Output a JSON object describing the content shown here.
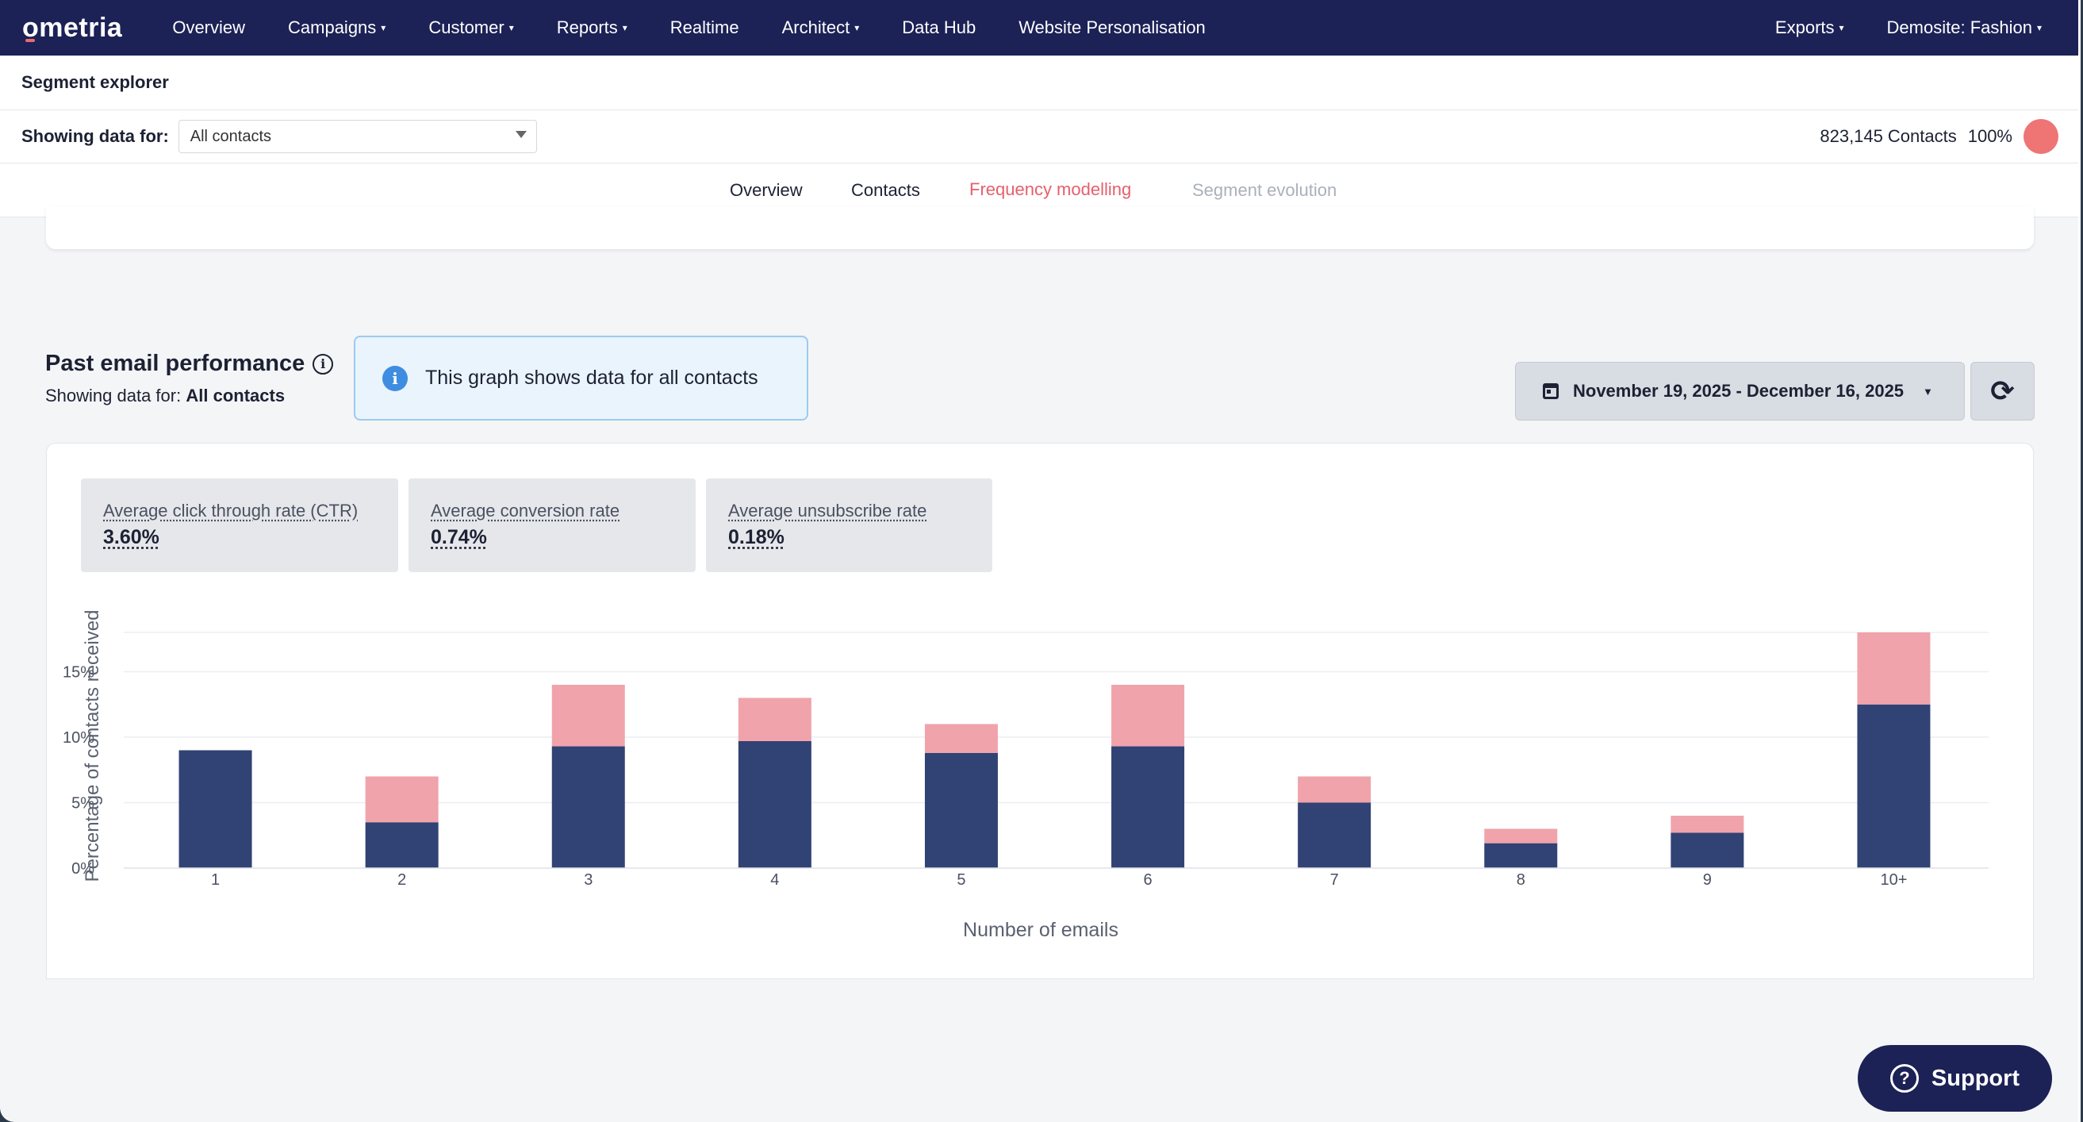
{
  "nav": {
    "logo": "ometria",
    "items": [
      {
        "label": "Overview",
        "dropdown": false
      },
      {
        "label": "Campaigns",
        "dropdown": true
      },
      {
        "label": "Customer",
        "dropdown": true
      },
      {
        "label": "Reports",
        "dropdown": true
      },
      {
        "label": "Realtime",
        "dropdown": false
      },
      {
        "label": "Architect",
        "dropdown": true
      },
      {
        "label": "Data Hub",
        "dropdown": false
      },
      {
        "label": "Website Personalisation",
        "dropdown": false
      }
    ],
    "right_items": [
      {
        "label": "Exports",
        "dropdown": true
      },
      {
        "label": "Demosite: Fashion",
        "dropdown": true
      }
    ],
    "caret": "▾"
  },
  "header": {
    "title": "Segment explorer",
    "showing_label": "Showing data for:",
    "segment_value": "All contacts",
    "contacts_count": "823,145",
    "contacts_label": "Contacts",
    "contacts_percent": "100%"
  },
  "tabs": [
    {
      "label": "Overview",
      "state": "normal"
    },
    {
      "label": "Contacts",
      "state": "normal"
    },
    {
      "label": "Frequency modelling",
      "state": "active"
    },
    {
      "label": "Segment evolution",
      "state": "disabled"
    }
  ],
  "section": {
    "title": "Past email performance",
    "info_icon": "i",
    "sub_label": "Showing data for:",
    "sub_value": "All contacts",
    "info_message": "This graph shows data for all contacts",
    "date_range": "November 19, 2025 - December 16, 2025",
    "refresh_icon": "⟳"
  },
  "stats": [
    {
      "label": "Average click through rate (CTR)",
      "value": "3.60%"
    },
    {
      "label": "Average conversion rate",
      "value": "0.74%"
    },
    {
      "label": "Average unsubscribe rate",
      "value": "0.18%"
    }
  ],
  "chart_data": {
    "type": "bar",
    "stacked": true,
    "categories": [
      "1",
      "2",
      "3",
      "4",
      "5",
      "6",
      "7",
      "8",
      "9",
      "10+"
    ],
    "series": [
      {
        "values": [
          9.0,
          3.5,
          9.3,
          9.7,
          8.8,
          9.3,
          5.0,
          1.9,
          2.7,
          12.5
        ],
        "color": "#314274"
      },
      {
        "values": [
          0.0,
          3.5,
          4.7,
          3.3,
          2.2,
          4.7,
          2.0,
          1.1,
          1.3,
          5.5
        ],
        "color": "#f0a3ab"
      }
    ],
    "xlabel": "Number of emails",
    "ylabel": "Percentage of contacts received",
    "yticks": [
      "0%",
      "5%",
      "10%",
      "15%"
    ],
    "ylim": [
      0,
      19
    ],
    "grid": true
  },
  "support": {
    "label": "Support",
    "icon": "?"
  },
  "colors": {
    "nav_bg": "#1c2156",
    "accent": "#e5606c",
    "bar_dark": "#314274",
    "bar_light": "#f0a3ab"
  }
}
